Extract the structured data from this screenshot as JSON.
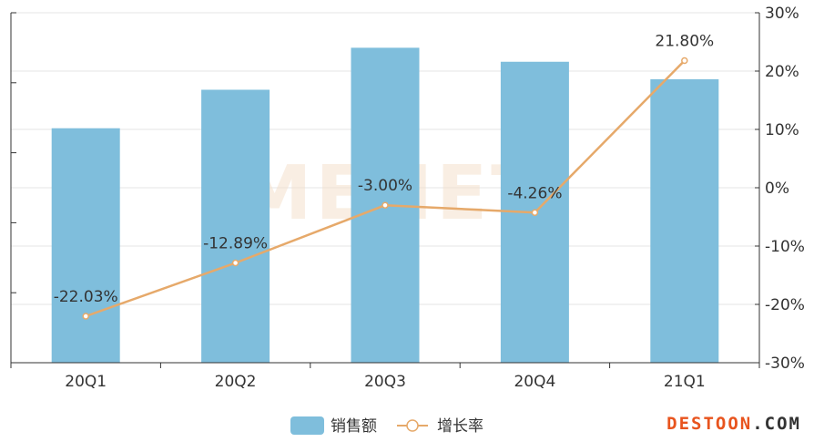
{
  "chart_data": {
    "type": "bar",
    "categories": [
      "20Q1",
      "20Q2",
      "20Q3",
      "20Q4",
      "21Q1"
    ],
    "series": [
      {
        "name": "销售额",
        "kind": "bar",
        "axis": "left",
        "values": [
          3.35,
          3.9,
          4.5,
          4.3,
          4.05
        ]
      },
      {
        "name": "增长率",
        "kind": "line",
        "axis": "right",
        "values": [
          -22.03,
          -12.89,
          -3.0,
          -4.26,
          21.8
        ],
        "data_labels": [
          "-22.03%",
          "-12.89%",
          "-3.00%",
          "-4.26%",
          "21.80%"
        ]
      }
    ],
    "y2lim": [
      -30,
      30
    ],
    "y2_ticks": [
      "-30%",
      "-20%",
      "-10%",
      "0%",
      "10%",
      "20%",
      "30%"
    ],
    "ylim": [
      0,
      5
    ],
    "legend_position": "bottom-center",
    "grid": true,
    "colors": {
      "bar": "#7fbedc",
      "line": "#e6a96a",
      "axis": "#333333",
      "grid": "#e6e6e6"
    }
  },
  "watermark": "MENET",
  "footer_logo": {
    "left": "DESTOON",
    "dot": ".",
    "right": "COM",
    "left_color": "#e8541e",
    "right_color": "#333333"
  }
}
